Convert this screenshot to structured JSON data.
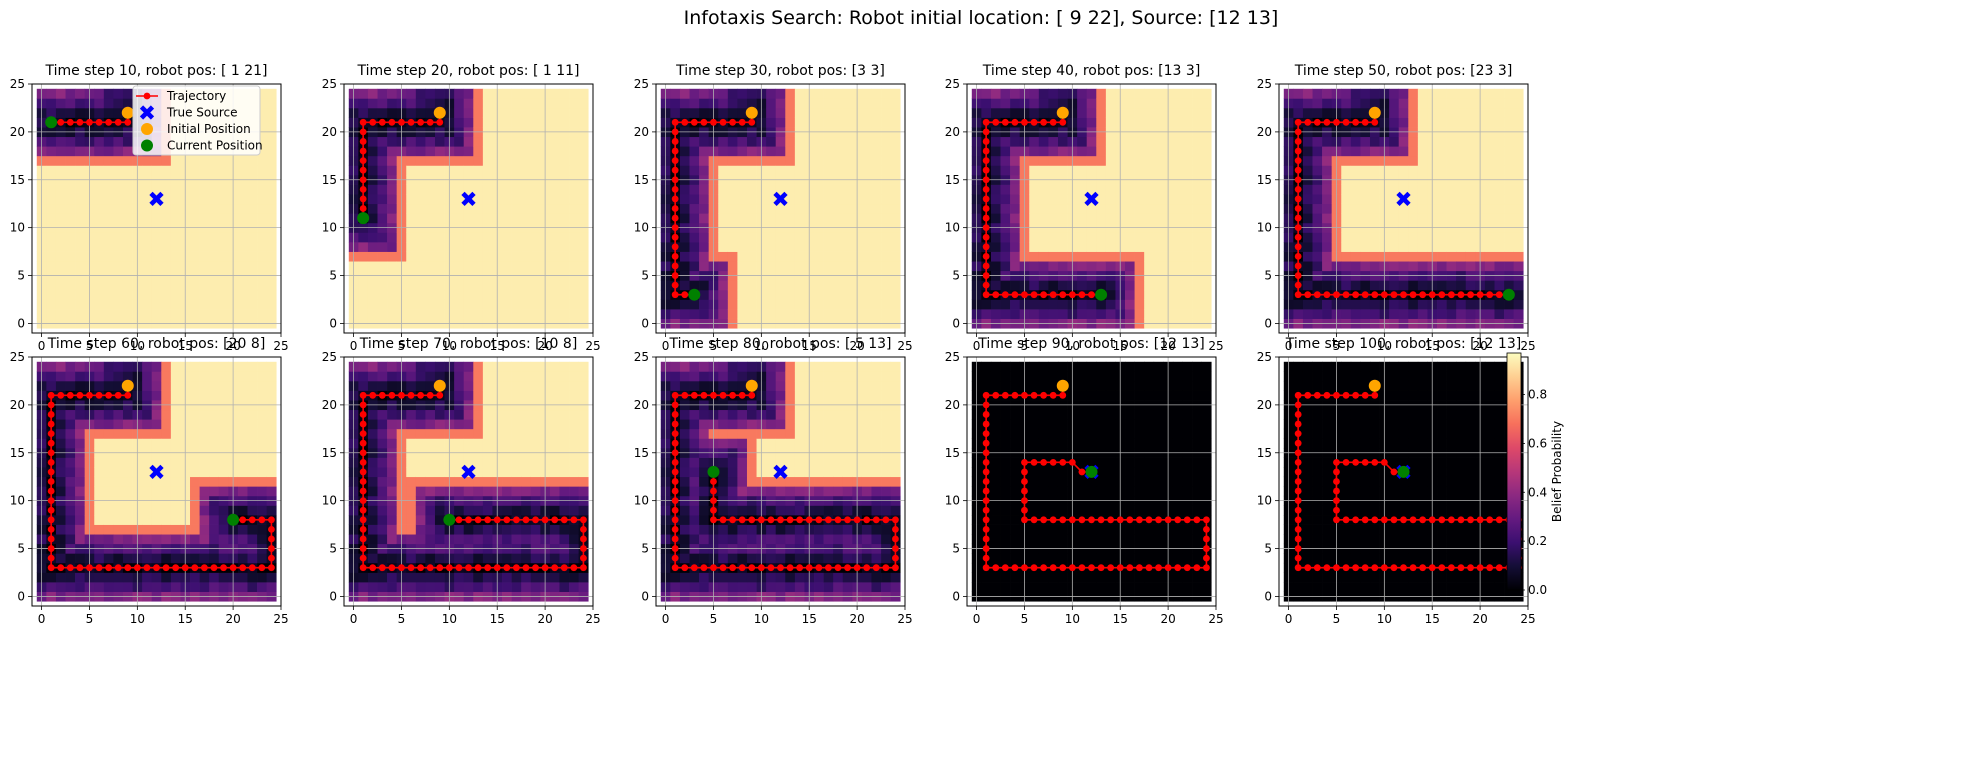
{
  "figure": {
    "title": "Infotaxis Search: Robot initial location: [ 9 22], Source: [12 13]"
  },
  "legend": {
    "placement": "upper-right of first panel",
    "entries": [
      {
        "label": "Trajectory",
        "marker": "line-with-dots",
        "color": "#ff0000"
      },
      {
        "label": "True Source",
        "marker": "X",
        "color": "#0000ff"
      },
      {
        "label": "Initial Position",
        "marker": "circle",
        "color": "#ffa500"
      },
      {
        "label": "Current Position",
        "marker": "circle",
        "color": "#008000"
      }
    ]
  },
  "colorbar": {
    "label": "Belief Probability",
    "colormap": "magma",
    "ticks": [
      "0.0",
      "0.2",
      "0.4",
      "0.6",
      "0.8"
    ],
    "range": [
      0,
      0.97
    ]
  },
  "chart_data": {
    "type": "heatmap",
    "grid_size": 25,
    "xlim": [
      -1,
      25
    ],
    "ylim": [
      -1,
      25
    ],
    "x_ticks": [
      "0",
      "5",
      "10",
      "15",
      "20",
      "25"
    ],
    "y_ticks": [
      "0",
      "5",
      "10",
      "15",
      "20",
      "25"
    ],
    "grid": true,
    "source": [
      12,
      13
    ],
    "initial": [
      9,
      22
    ],
    "colors": {
      "trajectory": "#ff0000",
      "source": "#0000ff",
      "initial": "#ffa500",
      "current": "#008000"
    },
    "path_waypoints": [
      [
        9,
        21
      ],
      [
        1,
        21
      ],
      [
        1,
        3
      ],
      [
        23,
        3
      ],
      [
        24,
        3
      ],
      [
        24,
        8
      ],
      [
        10,
        8
      ],
      [
        5,
        8
      ],
      [
        5,
        14
      ],
      [
        10,
        14
      ],
      [
        11,
        13
      ],
      [
        12,
        13
      ]
    ],
    "panels": [
      {
        "title": "Time step 10, robot pos: [ 1 21]",
        "step": 10,
        "robot": [
          1,
          21
        ]
      },
      {
        "title": "Time step 20, robot pos: [ 1 11]",
        "step": 20,
        "robot": [
          1,
          11
        ]
      },
      {
        "title": "Time step 30, robot pos: [3 3]",
        "step": 30,
        "robot": [
          3,
          3
        ]
      },
      {
        "title": "Time step 40, robot pos: [13  3]",
        "step": 40,
        "robot": [
          13,
          3
        ]
      },
      {
        "title": "Time step 50, robot pos: [23  3]",
        "step": 50,
        "robot": [
          23,
          3
        ]
      },
      {
        "title": "Time step 60, robot pos: [20  8]",
        "step": 60,
        "robot": [
          20,
          8
        ]
      },
      {
        "title": "Time step 70, robot pos: [10  8]",
        "step": 70,
        "robot": [
          10,
          8
        ]
      },
      {
        "title": "Time step 80, robot pos: [ 5 13]",
        "step": 80,
        "robot": [
          5,
          13
        ]
      },
      {
        "title": "Time step 90, robot pos: [12 13]",
        "step": 90,
        "robot": [
          12,
          13
        ]
      },
      {
        "title": "Time step 100, robot pos: [12 13]",
        "step": 100,
        "robot": [
          12,
          13
        ]
      }
    ]
  }
}
